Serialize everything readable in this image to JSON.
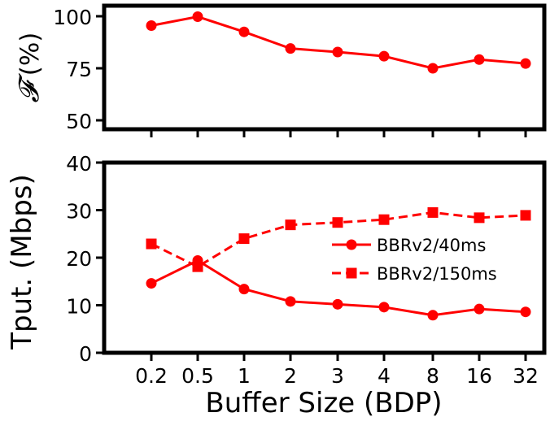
{
  "chart_data": [
    {
      "type": "line",
      "panel": "top",
      "title": "",
      "xlabel": "",
      "ylabel": "𝓕 (%)",
      "ylabel_symbol": "𝓕",
      "ylabel_unit": "(%)",
      "categories": [
        "0.2",
        "0.5",
        "1",
        "2",
        "3",
        "4",
        "8",
        "16",
        "32"
      ],
      "ylim": [
        45,
        104
      ],
      "yticks": [
        50,
        75,
        100
      ],
      "grid": false,
      "series": [
        {
          "values": [
            95.5,
            99.8,
            92.5,
            84.5,
            82.8,
            80.8,
            75.0,
            79.2,
            77.3
          ],
          "color": "#ff0000",
          "marker": "circle",
          "linestyle": "solid"
        }
      ]
    },
    {
      "type": "line",
      "panel": "bottom",
      "title": "",
      "xlabel": "Buffer Size (BDP)",
      "ylabel": "Tput. (Mbps)",
      "categories": [
        "0.2",
        "0.5",
        "1",
        "2",
        "3",
        "4",
        "8",
        "16",
        "32"
      ],
      "ylim": [
        0,
        40
      ],
      "yticks": [
        0,
        10,
        20,
        30,
        40
      ],
      "grid": false,
      "legend_position": "center-right",
      "series": [
        {
          "name": "BBRv2/40ms",
          "values": [
            14.6,
            19.4,
            13.4,
            10.8,
            10.2,
            9.6,
            7.9,
            9.2,
            8.6
          ],
          "color": "#ff0000",
          "marker": "circle",
          "linestyle": "solid"
        },
        {
          "name": "BBRv2/150ms",
          "values": [
            22.9,
            18.1,
            24.0,
            26.9,
            27.4,
            28.0,
            29.5,
            28.4,
            28.9
          ],
          "color": "#ff0000",
          "marker": "square",
          "linestyle": "dashed"
        }
      ]
    }
  ]
}
